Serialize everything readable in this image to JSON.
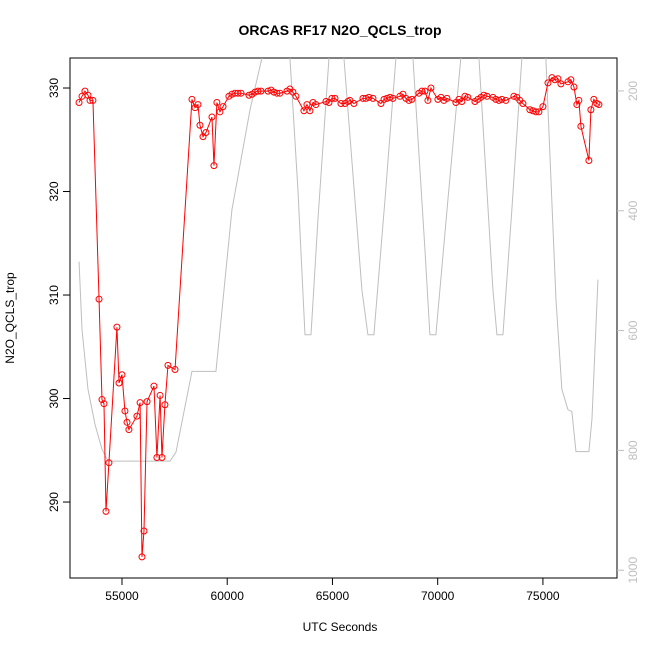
{
  "chart_data": {
    "type": "line",
    "title": "ORCAS RF17 N2O_QCLS_trop",
    "x_label": "UTC Seconds",
    "y_label": "N2O_QCLS_trop",
    "xlim": [
      52530,
      78520
    ],
    "xticks": [
      55000,
      60000,
      65000,
      70000,
      75000
    ],
    "ylim": [
      282.66,
      332.9
    ],
    "yticks": [
      290,
      300,
      310,
      320,
      330
    ],
    "y2lim": [
      1013,
      145
    ],
    "y2ticks": [
      200,
      400,
      600,
      800,
      1000
    ],
    "series": [
      {
        "color": "#ff0000",
        "markers": true,
        "x": [
          52960,
          53100,
          53240,
          53385,
          53480,
          53620,
          53910,
          54050,
          54145,
          54240,
          54380,
          54760,
          54860,
          55000,
          55140,
          55240,
          55330,
          55710,
          55860,
          55950,
          56045,
          56190,
          56520,
          56660,
          56810,
          56900,
          57040,
          57185,
          57520,
          58325,
          58470,
          58610,
          58705,
          58850,
          58990,
          59275,
          59370,
          59510,
          59655,
          59800,
          60080,
          60225,
          60370,
          60510,
          60655,
          61035,
          61180,
          61320,
          61460,
          61605,
          61940,
          62080,
          62220,
          62365,
          62505,
          62840,
          62980,
          63120,
          63265,
          63645,
          63790,
          63930,
          64075,
          64215,
          64690,
          64835,
          64975,
          65120,
          65405,
          65595,
          65735,
          65830,
          66020,
          66450,
          66590,
          66735,
          66925,
          67305,
          67450,
          67590,
          67735,
          67875,
          68205,
          68350,
          68490,
          68635,
          68775,
          69110,
          69250,
          69395,
          69535,
          69680,
          70010,
          70155,
          70295,
          70440,
          70865,
          71010,
          71150,
          71295,
          71435,
          71770,
          71910,
          72055,
          72195,
          72340,
          72625,
          72765,
          72910,
          73050,
          73240,
          73620,
          73765,
          73905,
          74050,
          74380,
          74525,
          74670,
          74810,
          75000,
          75240,
          75430,
          75570,
          75715,
          75855,
          76190,
          76330,
          76475,
          76615,
          76710,
          76805,
          77185,
          77280,
          77420,
          77565,
          77660
        ],
        "values": [
          328.6,
          329.2,
          329.7,
          329.3,
          328.8,
          328.8,
          309.6,
          299.9,
          299.5,
          289.1,
          293.8,
          306.9,
          301.5,
          302.3,
          298.8,
          297.7,
          297.0,
          298.3,
          299.6,
          284.7,
          287.2,
          299.7,
          301.2,
          294.3,
          300.3,
          294.3,
          299.4,
          303.2,
          302.8,
          328.9,
          328.1,
          328.4,
          326.4,
          325.3,
          325.7,
          327.2,
          322.5,
          328.6,
          327.7,
          328.2,
          329.2,
          329.4,
          329.5,
          329.5,
          329.5,
          329.3,
          329.4,
          329.6,
          329.7,
          329.7,
          329.7,
          329.8,
          329.6,
          329.5,
          329.5,
          329.7,
          329.9,
          329.6,
          329.2,
          327.8,
          328.4,
          327.8,
          328.6,
          328.4,
          328.7,
          328.6,
          329.0,
          329.0,
          328.5,
          328.5,
          328.7,
          328.8,
          328.5,
          329.0,
          329.0,
          329.1,
          329.0,
          328.5,
          328.9,
          329.0,
          329.1,
          329.0,
          329.2,
          329.4,
          329.0,
          328.8,
          328.9,
          329.5,
          329.7,
          329.7,
          328.8,
          330.0,
          328.9,
          329.1,
          328.8,
          329.0,
          328.6,
          328.9,
          328.7,
          329.2,
          329.1,
          328.7,
          328.9,
          329.1,
          329.3,
          329.2,
          329.1,
          328.9,
          328.8,
          328.9,
          328.8,
          329.2,
          329.1,
          328.8,
          328.5,
          327.9,
          327.8,
          327.7,
          327.7,
          328.2,
          330.5,
          331.0,
          330.8,
          330.9,
          330.4,
          330.6,
          330.8,
          330.1,
          328.4,
          328.8,
          326.3,
          323.0,
          327.9,
          328.9,
          328.5,
          328.4
        ]
      },
      {
        "color": "#bebebe",
        "axis": "y2",
        "markers": false,
        "x": [
          52960,
          53100,
          53385,
          53720,
          54050,
          54335,
          57280,
          57565,
          58325,
          59465,
          60225,
          61080,
          61650,
          61900,
          62980,
          63360,
          63695,
          63980,
          64310,
          64835,
          65200,
          65545,
          66400,
          66685,
          66970,
          67495,
          68015,
          68400,
          68825,
          69395,
          69630,
          69915,
          70485,
          71100,
          71500,
          71960,
          72625,
          72815,
          73100,
          73525,
          74000,
          74600,
          75140,
          75620,
          75900,
          76190,
          76375,
          76570,
          77185,
          77330,
          77615
        ],
        "values": [
          485,
          598,
          698,
          757,
          798,
          818,
          818,
          803,
          668,
          668,
          398,
          232,
          145,
          null,
          145,
          365,
          607,
          607,
          415,
          145,
          null,
          145,
          532,
          607,
          607,
          382,
          145,
          null,
          145,
          465,
          607,
          607,
          382,
          145,
          null,
          145,
          532,
          607,
          607,
          398,
          145,
          null,
          145,
          548,
          698,
          732,
          735,
          802,
          802,
          748,
          515
        ]
      }
    ]
  }
}
